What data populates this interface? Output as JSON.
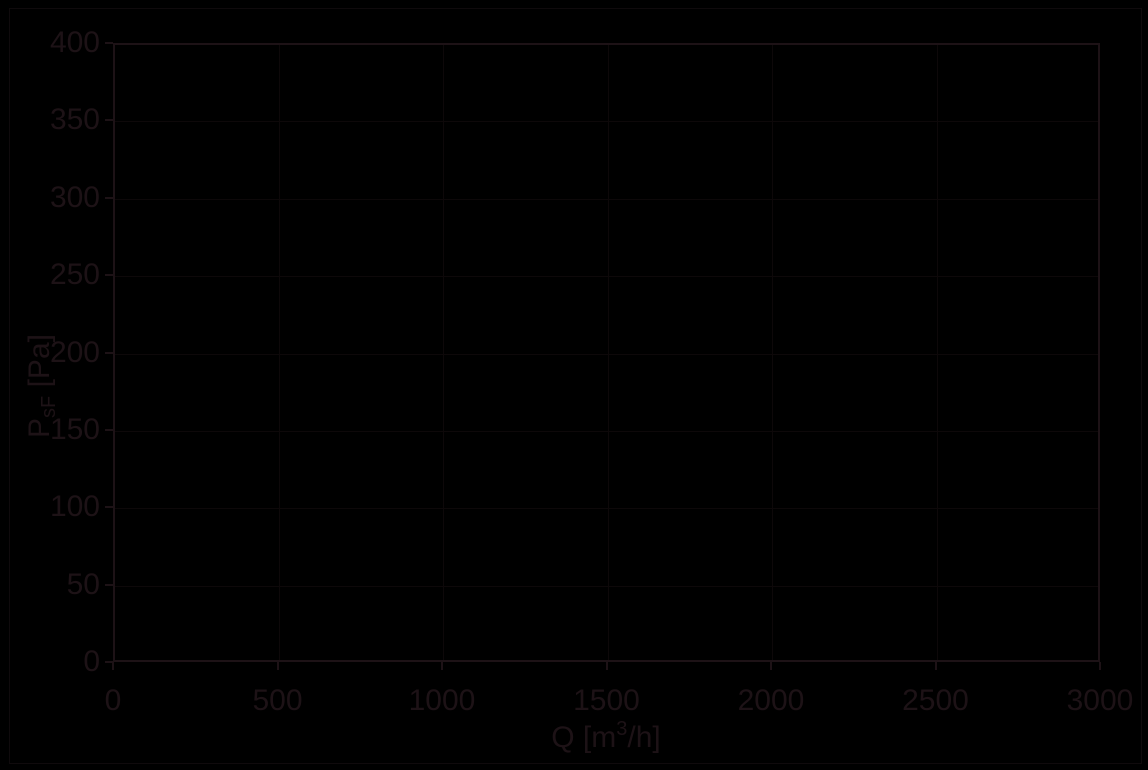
{
  "colors": {
    "background": "#000000",
    "foreground": "#1d1216",
    "grid": "#0d0809",
    "figure_border": "#0f0a0c"
  },
  "axis": {
    "y_title": {
      "base": "P",
      "sub": "sF",
      "rest": " [Pa]"
    },
    "x_title": {
      "base": "Q [m",
      "sup": "3",
      "rest": "/h]"
    }
  },
  "x_axis": {
    "tick_labels": [
      "0",
      "500",
      "1000",
      "1500",
      "2000",
      "2500",
      "3000"
    ]
  },
  "y_axis": {
    "tick_labels": [
      "0",
      "50",
      "100",
      "150",
      "200",
      "250",
      "300",
      "350",
      "400"
    ]
  },
  "chart_data": {
    "type": "line",
    "title": "",
    "xlabel": "Q [m3/h]",
    "ylabel": "PsF [Pa]",
    "xlim": [
      0,
      3000
    ],
    "ylim": [
      0,
      400
    ],
    "xticks": [
      0,
      500,
      1000,
      1500,
      2000,
      2500,
      3000
    ],
    "yticks": [
      0,
      50,
      100,
      150,
      200,
      250,
      300,
      350,
      400
    ],
    "grid": true,
    "legend": false,
    "series": []
  }
}
